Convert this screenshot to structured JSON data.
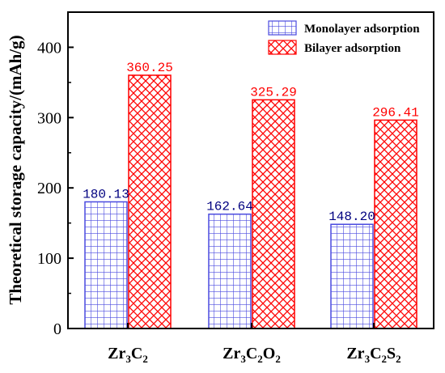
{
  "chart_data": {
    "type": "bar",
    "title": "",
    "xlabel": "",
    "ylabel": "Theoretical storage capacity/(mAh/g)",
    "ylim": [
      0,
      450
    ],
    "yticks": [
      0,
      100,
      200,
      300,
      400
    ],
    "categories": [
      {
        "base": "Zr",
        "sub1": "3",
        "mid": "C",
        "sub2": "2",
        "tail": "",
        "sub3": ""
      },
      {
        "base": "Zr",
        "sub1": "3",
        "mid": "C",
        "sub2": "2",
        "tail": "O",
        "sub3": "2"
      },
      {
        "base": "Zr",
        "sub1": "3",
        "mid": "C",
        "sub2": "2",
        "tail": "S",
        "sub3": "2"
      }
    ],
    "series": [
      {
        "name": "Monolayer adsorption",
        "values": [
          180.13,
          162.64,
          148.2
        ],
        "labels": [
          "180.13",
          "162.64",
          "148.20"
        ],
        "color": "#4a4adf",
        "pattern": "grid"
      },
      {
        "name": "Bilayer adsorption",
        "values": [
          360.25,
          325.29,
          296.41
        ],
        "labels": [
          "360.25",
          "325.29",
          "296.41"
        ],
        "color": "#ff0000",
        "pattern": "crosshatch"
      }
    ],
    "legend_position": "top-right",
    "grid": false
  }
}
